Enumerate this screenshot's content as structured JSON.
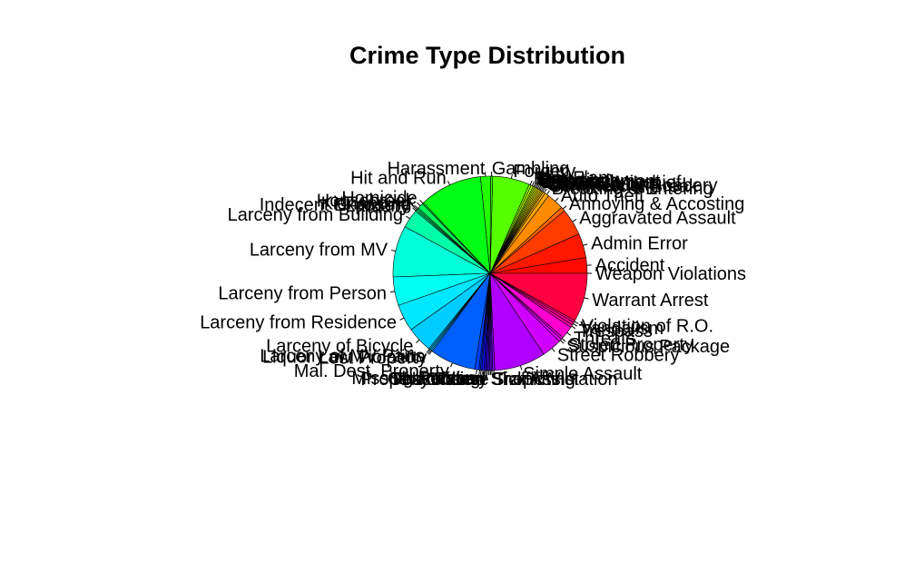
{
  "chart_data": {
    "type": "pie",
    "title": "Crime Type Distribution",
    "start_angle_deg": 0,
    "direction": "counterclockwise",
    "border_color": "#000000",
    "slices": [
      {
        "label": "Weapon Violations",
        "value": 0.0,
        "color": "#FF0000"
      },
      {
        "label": "Accident",
        "value": 2.2,
        "color": "#FF0800"
      },
      {
        "label": "Admin Error",
        "value": 3.4,
        "color": "#FF1800"
      },
      {
        "label": "Aggravated Assault",
        "value": 3.8,
        "color": "#FF3C00"
      },
      {
        "label": "Annoying & Accosting",
        "value": 0.6,
        "color": "#FF6600"
      },
      {
        "label": "Auto Theft",
        "value": 2.4,
        "color": "#FF8C00"
      },
      {
        "label": "Breaking & Entering",
        "value": 0.6,
        "color": "#FFA600"
      },
      {
        "label": "Commercial Break",
        "value": 0.3,
        "color": "#FFB800"
      },
      {
        "label": "Commercial Robbery",
        "value": 0.2,
        "color": "#FFC800"
      },
      {
        "label": "Counterfeiting",
        "value": 0.2,
        "color": "#FFD800"
      },
      {
        "label": "Credit Card",
        "value": 0.2,
        "color": "#FFE800"
      },
      {
        "label": "Criminal Mischief",
        "value": 0.2,
        "color": "#FFF800"
      },
      {
        "label": "Disorderly",
        "value": 0.2,
        "color": "#F0FF00"
      },
      {
        "label": "Embezzlement",
        "value": 0.2,
        "color": "#E0FF00"
      },
      {
        "label": "Extortion",
        "value": 0.2,
        "color": "#D0FF00"
      },
      {
        "label": "Fraud",
        "value": 0.2,
        "color": "#C0FF00"
      },
      {
        "label": "Fire",
        "value": 0.3,
        "color": "#B0FF00"
      },
      {
        "label": "Flim Flam",
        "value": 0.3,
        "color": "#98FF00"
      },
      {
        "label": "Forgery",
        "value": 5.2,
        "color": "#55FF00"
      },
      {
        "label": "Gambling",
        "value": 0.3,
        "color": "#33FF00"
      },
      {
        "label": "Harassment",
        "value": 1.4,
        "color": "#22FF00"
      },
      {
        "label": "Hit and Run",
        "value": 8.8,
        "color": "#00FF14"
      },
      {
        "label": "Homicide",
        "value": 0.2,
        "color": "#00FF40"
      },
      {
        "label": "Housebreak",
        "value": 0.8,
        "color": "#00FF5A"
      },
      {
        "label": "Kidnapping",
        "value": 0.2,
        "color": "#00FF70"
      },
      {
        "label": "Indecent Exposure",
        "value": 0.2,
        "color": "#00FF80"
      },
      {
        "label": "Larceny",
        "value": 0.2,
        "color": "#00FF90"
      },
      {
        "label": "Larceny from Building",
        "value": 2.6,
        "color": "#00FFA8"
      },
      {
        "label": "Larceny from MV",
        "value": 7.2,
        "color": "#00FFD8"
      },
      {
        "label": "Larceny from Person",
        "value": 4.0,
        "color": "#00FFF0"
      },
      {
        "label": "Larceny from Residence",
        "value": 3.8,
        "color": "#00E8FF"
      },
      {
        "label": "Larceny of Bicycle",
        "value": 3.6,
        "color": "#00CCFF"
      },
      {
        "label": "Larceny of MV Parts",
        "value": 0.2,
        "color": "#00C4FF"
      },
      {
        "label": "Liquor Law Violation",
        "value": 0.2,
        "color": "#00BEFF"
      },
      {
        "label": "Lost Property",
        "value": 0.2,
        "color": "#00B8FF"
      },
      {
        "label": "Mal. Dest. Property",
        "value": 6.4,
        "color": "#0060FF"
      },
      {
        "label": "Missing Person",
        "value": 0.6,
        "color": "#0040FF"
      },
      {
        "label": "Narcotics",
        "value": 0.2,
        "color": "#0030FF"
      },
      {
        "label": "Obstructing",
        "value": 0.2,
        "color": "#0020FF"
      },
      {
        "label": "Other",
        "value": 0.3,
        "color": "#1010FF"
      },
      {
        "label": "Prostitution",
        "value": 0.2,
        "color": "#2000FF"
      },
      {
        "label": "Property Found",
        "value": 0.2,
        "color": "#3000FF"
      },
      {
        "label": "Robbery",
        "value": 0.2,
        "color": "#4000FF"
      },
      {
        "label": "Sex Offense",
        "value": 0.2,
        "color": "#5000FF"
      },
      {
        "label": "Shoplifting",
        "value": 0.2,
        "color": "#6000FF"
      },
      {
        "label": "Sick Assist",
        "value": 0.2,
        "color": "#7000FF"
      },
      {
        "label": "Traffic Violation",
        "value": 0.3,
        "color": "#8000FF"
      },
      {
        "label": "Simple Assault",
        "value": 7.2,
        "color": "#B000FF"
      },
      {
        "label": "Street Robbery",
        "value": 2.8,
        "color": "#D000FF"
      },
      {
        "label": "Suspicious Package",
        "value": 0.4,
        "color": "#E800FF"
      },
      {
        "label": "Stolen Property",
        "value": 0.3,
        "color": "#F000F0"
      },
      {
        "label": "Threats",
        "value": 1.8,
        "color": "#FF00D0"
      },
      {
        "label": "Trespass",
        "value": 0.4,
        "color": "#FF00A8"
      },
      {
        "label": "Vandalism",
        "value": 0.4,
        "color": "#FF0090"
      },
      {
        "label": "Violation of R.O.",
        "value": 0.3,
        "color": "#FF0080"
      },
      {
        "label": "Warrant Arrest",
        "value": 6.8,
        "color": "#FF0040"
      }
    ]
  }
}
